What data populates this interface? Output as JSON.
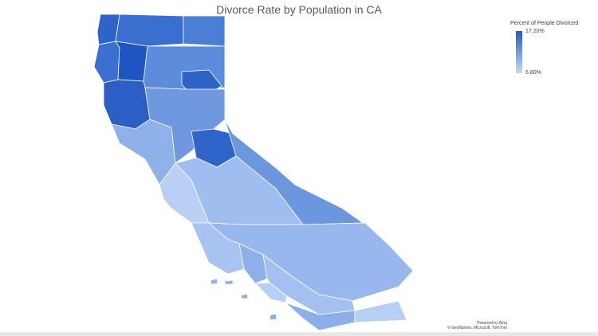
{
  "title": "Divorce Rate by Population in CA",
  "legend": {
    "title": "Percent of People Divorced",
    "max_label": "17.20%",
    "min_label": "6.80%",
    "color_max": "#1f5bc2",
    "color_min": "#c6dbf7"
  },
  "attribution": {
    "line1": "Powered by Bing",
    "line2": "© GeoNames, Microsoft, TomTom"
  },
  "regions": [
    {
      "name": "north-coast-a",
      "color": "#2e63c7"
    },
    {
      "name": "north-coast-b",
      "color": "#3a6fcf"
    },
    {
      "name": "north-east",
      "color": "#4b7fd5"
    },
    {
      "name": "northern-interior",
      "color": "#3c70d0"
    },
    {
      "name": "shasta",
      "color": "#1f55c0"
    },
    {
      "name": "sacramento-valley-north",
      "color": "#5c8cdb"
    },
    {
      "name": "sierra-north",
      "color": "#2e63c7"
    },
    {
      "name": "north-coast-south",
      "color": "#2b5fc4"
    },
    {
      "name": "bay-area",
      "color": "#8fb1ea"
    },
    {
      "name": "central-valley",
      "color": "#6f98df"
    },
    {
      "name": "sierra-central",
      "color": "#2f64c8"
    },
    {
      "name": "eastern-sierra",
      "color": "#6c97df"
    },
    {
      "name": "central-coast",
      "color": "#b9d0f4"
    },
    {
      "name": "san-joaquin",
      "color": "#9fbdef"
    },
    {
      "name": "southern-interior",
      "color": "#98b7ee"
    },
    {
      "name": "south-coast-west",
      "color": "#a8c3f0"
    },
    {
      "name": "los-angeles",
      "color": "#8db0ea"
    },
    {
      "name": "inland-empire",
      "color": "#a4c0f0"
    },
    {
      "name": "orange",
      "color": "#b6cff4"
    },
    {
      "name": "san-diego",
      "color": "#8cafe9"
    },
    {
      "name": "imperial",
      "color": "#b8cff4"
    },
    {
      "name": "islands",
      "color": "#8db0ea"
    }
  ]
}
